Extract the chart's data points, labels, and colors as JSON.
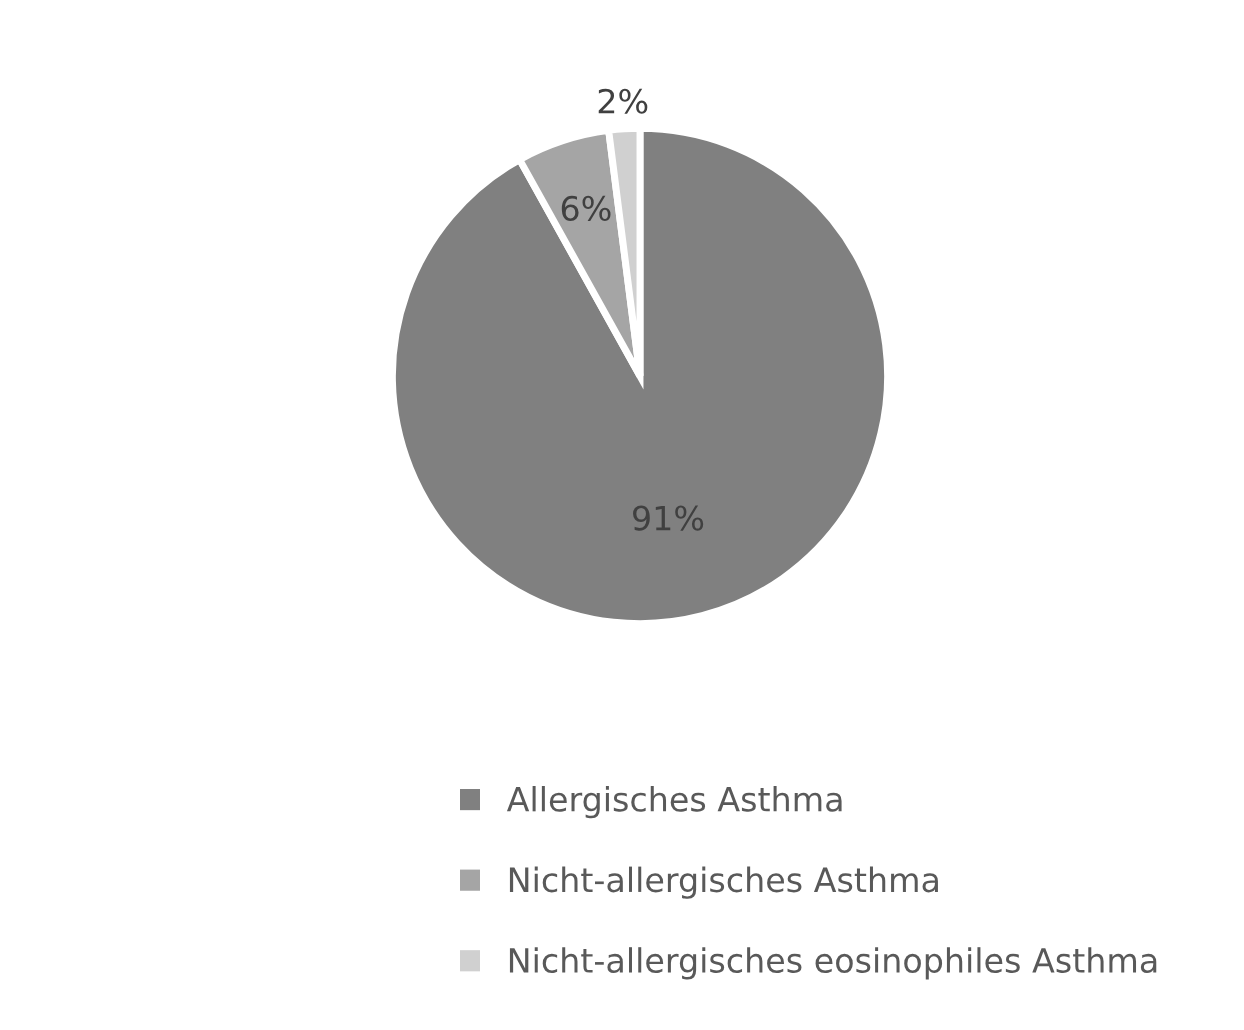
{
  "chart_data": {
    "type": "pie",
    "categories": [
      "Allergisches Asthma",
      "Nicht-allergisches Asthma",
      "Nicht-allergisches eosinophiles Asthma"
    ],
    "values": [
      91,
      6,
      2
    ],
    "colors": [
      "#808080",
      "#a5a5a5",
      "#d0d0d0"
    ],
    "value_labels": [
      "91%",
      "6%",
      "2%"
    ],
    "legend": "bottom"
  }
}
